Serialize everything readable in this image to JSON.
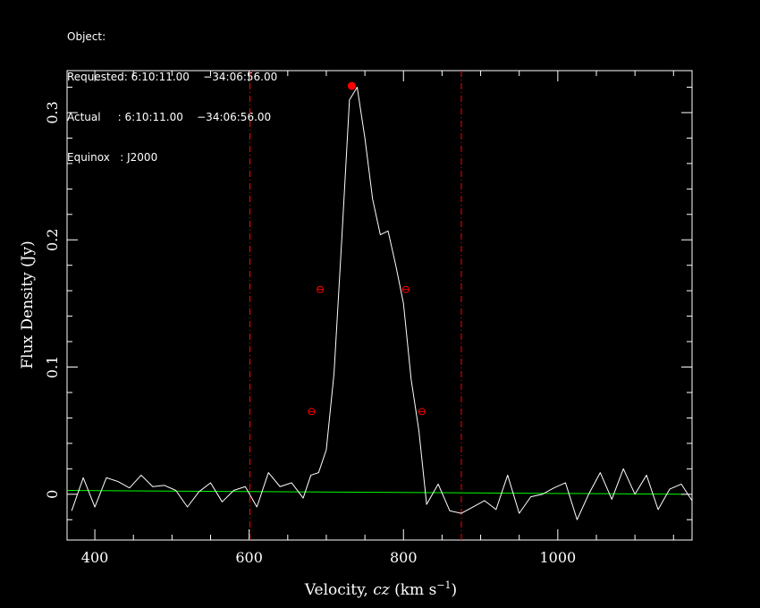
{
  "header": {
    "object_line": "Object:",
    "requested_line": "Requested: 6:10:11.00    −34:06:56.00",
    "actual_line": "Actual     : 6:10:11.00    −34:06:56.00",
    "equinox_line": "Equinox   : J2000"
  },
  "chart_data": {
    "type": "line",
    "title": "",
    "xlabel_prefix": "Velocity, ",
    "xlabel_italic": "cz",
    "xlabel_unit": " (km s",
    "xlabel_exp": "−1",
    "xlabel_close": ")",
    "ylabel": "Flux Density (Jy)",
    "xlim": [
      364,
      1174
    ],
    "ylim": [
      -0.036,
      0.333
    ],
    "x_ticks": [
      400,
      600,
      800,
      1000
    ],
    "x_tick_labels": [
      "400",
      "600",
      "800",
      "1000"
    ],
    "y_ticks": [
      0,
      0.1,
      0.2,
      0.3
    ],
    "y_tick_labels": [
      "0",
      "0.1",
      "0.2",
      "0.3"
    ],
    "grid": false,
    "colors": {
      "spectrum": "#ffffff",
      "baseline": "#00ff00",
      "markers": "#ff0000",
      "window": "#ff0000",
      "axes": "#ffffff"
    },
    "spectrum": {
      "x": [
        370,
        385,
        400,
        415,
        430,
        445,
        460,
        475,
        490,
        505,
        520,
        535,
        550,
        565,
        580,
        595,
        610,
        625,
        640,
        655,
        670,
        680,
        690,
        700,
        710,
        720,
        730,
        740,
        750,
        760,
        770,
        780,
        790,
        800,
        810,
        820,
        830,
        845,
        860,
        875,
        890,
        905,
        920,
        935,
        950,
        965,
        980,
        995,
        1010,
        1025,
        1040,
        1055,
        1070,
        1085,
        1100,
        1115,
        1130,
        1145,
        1160,
        1174
      ],
      "y": [
        -0.013,
        0.013,
        -0.01,
        0.013,
        0.01,
        0.005,
        0.015,
        0.006,
        0.007,
        0.003,
        -0.01,
        0.002,
        0.009,
        -0.006,
        0.003,
        0.006,
        -0.01,
        0.017,
        0.006,
        0.009,
        -0.003,
        0.015,
        0.017,
        0.035,
        0.095,
        0.2,
        0.31,
        0.32,
        0.28,
        0.232,
        0.204,
        0.207,
        0.18,
        0.15,
        0.09,
        0.05,
        -0.008,
        0.008,
        -0.013,
        -0.015,
        -0.01,
        -0.005,
        -0.012,
        0.015,
        -0.015,
        -0.002,
        0.0,
        0.005,
        0.009,
        -0.02,
        0.0,
        0.017,
        -0.004,
        0.02,
        0.0,
        0.015,
        -0.012,
        0.004,
        0.008,
        -0.005
      ]
    },
    "baseline": {
      "x": [
        364,
        1174
      ],
      "y": [
        0.003,
        0.0
      ]
    },
    "peak_marker": {
      "x": 733,
      "y": 0.321
    },
    "width_markers": [
      {
        "x": 692,
        "y": 0.161
      },
      {
        "x": 803,
        "y": 0.161
      },
      {
        "x": 681,
        "y": 0.065
      },
      {
        "x": 824,
        "y": 0.065
      }
    ],
    "window_lines": [
      601,
      875
    ]
  }
}
